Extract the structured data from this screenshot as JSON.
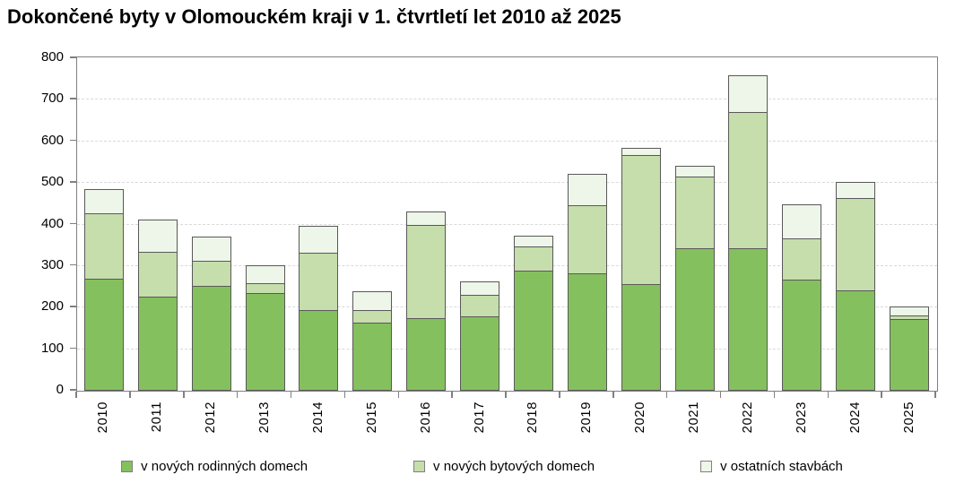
{
  "title": "Dokončené byty v Olomouckém kraji v 1. čtvrtletí let 2010 až 2025",
  "colors": {
    "series_dark_green": "#85c05e",
    "series_light_green": "#c5deac",
    "series_pale_green": "#eef5e9",
    "segment_border": "#595959",
    "axis_frame": "#808080",
    "gridline": "#d9d9d9",
    "text": "#000000",
    "background": "#ffffff"
  },
  "chart_data": {
    "type": "bar",
    "stacked": true,
    "title": "Dokončené byty v Olomouckém kraji v 1. čtvrtletí let 2010 až 2025",
    "categories": [
      "2010",
      "2011",
      "2012",
      "2013",
      "2014",
      "2015",
      "2016",
      "2017",
      "2018",
      "2019",
      "2020",
      "2021",
      "2022",
      "2023",
      "2024",
      "2025"
    ],
    "series": [
      {
        "name": "v nových rodinných domech",
        "color": "#85c05e",
        "values": [
          270,
          227,
          252,
          235,
          193,
          163,
          174,
          178,
          290,
          282,
          256,
          343,
          343,
          268,
          241,
          173
        ]
      },
      {
        "name": "v nových bytových domech",
        "color": "#c5deac",
        "values": [
          160,
          110,
          63,
          25,
          140,
          33,
          226,
          54,
          60,
          166,
          313,
          175,
          329,
          102,
          224,
          11
        ]
      },
      {
        "name": "v ostatních stavbách",
        "color": "#eef5e9",
        "values": [
          60,
          80,
          60,
          45,
          67,
          48,
          35,
          34,
          28,
          77,
          20,
          27,
          90,
          85,
          40,
          24
        ]
      }
    ],
    "totals": [
      490,
      417,
      375,
      305,
      400,
      244,
      435,
      266,
      378,
      525,
      589,
      545,
      762,
      455,
      505,
      208
    ],
    "xlabel": "",
    "ylabel": "",
    "ylim": [
      0,
      800
    ],
    "ytick_step": 100,
    "yticks": [
      0,
      100,
      200,
      300,
      400,
      500,
      600,
      700,
      800
    ],
    "grid": "horizontal-dashed",
    "legend_position": "bottom",
    "x_label_rotation": 90
  }
}
